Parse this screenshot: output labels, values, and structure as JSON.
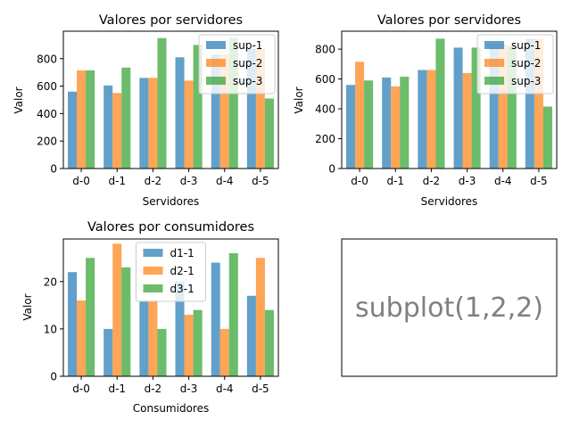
{
  "figure": {
    "background": "#ffffff"
  },
  "chart_data": [
    {
      "type": "bar",
      "title": "Valores por servidores",
      "xlabel": "Servidores",
      "ylabel": "Valor",
      "categories": [
        "d-0",
        "d-1",
        "d-2",
        "d-3",
        "d-4",
        "d-5"
      ],
      "ylim": [
        0,
        1000
      ],
      "yticks": [
        0,
        200,
        400,
        600,
        800
      ],
      "legend_position": "top-right",
      "series": [
        {
          "name": "sup-1",
          "color": "#1f77b4",
          "values": [
            560,
            605,
            660,
            810,
            830,
            870
          ]
        },
        {
          "name": "sup-2",
          "color": "#ff7f0e",
          "values": [
            715,
            550,
            660,
            640,
            830,
            870
          ]
        },
        {
          "name": "sup-3",
          "color": "#2ca02c",
          "values": [
            715,
            735,
            950,
            900,
            950,
            510
          ]
        }
      ]
    },
    {
      "type": "bar",
      "title": "Valores por servidores",
      "xlabel": "Servidores",
      "ylabel": "Valor",
      "categories": [
        "d-0",
        "d-1",
        "d-2",
        "d-3",
        "d-4",
        "d-5"
      ],
      "ylim": [
        0,
        920
      ],
      "yticks": [
        0,
        200,
        400,
        600,
        800
      ],
      "legend_position": "top-right",
      "series": [
        {
          "name": "sup-1",
          "color": "#1f77b4",
          "values": [
            560,
            610,
            660,
            810,
            830,
            870
          ]
        },
        {
          "name": "sup-2",
          "color": "#ff7f0e",
          "values": [
            715,
            550,
            660,
            640,
            830,
            870
          ]
        },
        {
          "name": "sup-3",
          "color": "#2ca02c",
          "values": [
            590,
            615,
            870,
            810,
            820,
            415
          ]
        }
      ]
    },
    {
      "type": "bar",
      "title": "Valores por consumidores",
      "xlabel": "Consumidores",
      "ylabel": "Valor",
      "categories": [
        "d-0",
        "d-1",
        "d-2",
        "d-3",
        "d-4",
        "d-5"
      ],
      "ylim": [
        0,
        29
      ],
      "yticks": [
        0,
        10,
        20
      ],
      "legend_position": "top-center",
      "series": [
        {
          "name": "d1-1",
          "color": "#1f77b4",
          "values": [
            22,
            10,
            16,
            20,
            24,
            17
          ]
        },
        {
          "name": "d2-1",
          "color": "#ff7f0e",
          "values": [
            16,
            28,
            16,
            13,
            10,
            25
          ]
        },
        {
          "name": "d3-1",
          "color": "#2ca02c",
          "values": [
            25,
            23,
            10,
            14,
            26,
            14
          ]
        }
      ]
    }
  ],
  "placeholder_panel": {
    "text": "subplot(1,2,2)"
  }
}
